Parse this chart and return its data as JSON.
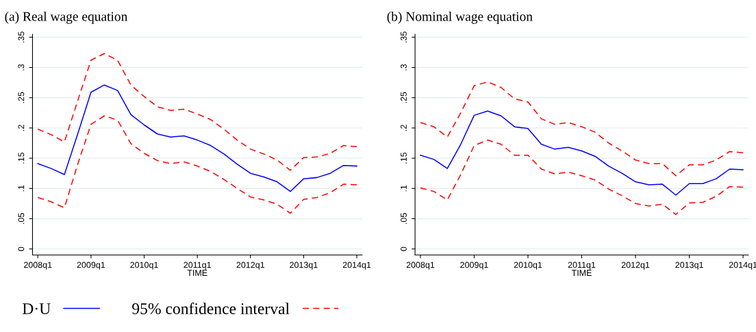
{
  "chart_data": [
    {
      "type": "line",
      "title": "(a) Real wage equation",
      "xlabel": "TIME",
      "legend": "bottom",
      "grid": "y",
      "categories": [
        "2008q1",
        null,
        null,
        null,
        "2009q1",
        null,
        null,
        null,
        "2010q1",
        null,
        null,
        null,
        "2011q1",
        null,
        null,
        null,
        "2012q1",
        null,
        null,
        null,
        "2013q1",
        null,
        null,
        null,
        "2014q1"
      ],
      "ylim": [
        -0.01,
        0.355
      ],
      "yticks": [
        {
          "value": 0,
          "label": "0"
        },
        {
          "value": 0.05,
          "label": ".05"
        },
        {
          "value": 0.1,
          "label": ".1"
        },
        {
          "value": 0.15,
          "label": ".15"
        },
        {
          "value": 0.2,
          "label": ".2"
        },
        {
          "value": 0.25,
          "label": ".25"
        },
        {
          "value": 0.3,
          "label": ".3"
        },
        {
          "value": 0.35,
          "label": ".35"
        }
      ],
      "series": [
        {
          "name": "D·U",
          "color": "#0000ff",
          "line_style": "solid",
          "values": [
            0.141,
            0.133,
            0.123,
            0.19,
            0.259,
            0.271,
            0.262,
            0.222,
            0.205,
            0.19,
            0.185,
            0.187,
            0.18,
            0.171,
            0.157,
            0.14,
            0.125,
            0.119,
            0.111,
            0.095,
            0.116,
            0.118,
            0.125,
            0.138,
            0.137
          ]
        },
        {
          "name": "95% confidence interval",
          "color": "#ff0000",
          "line_style": "dashed",
          "values": [
            0.198,
            0.189,
            0.177,
            0.245,
            0.312,
            0.323,
            0.312,
            0.271,
            0.252,
            0.235,
            0.229,
            0.231,
            0.223,
            0.214,
            0.198,
            0.18,
            0.165,
            0.157,
            0.147,
            0.13,
            0.151,
            0.152,
            0.158,
            0.171,
            0.169
          ]
        },
        {
          "color": "#ff0000",
          "line_style": "dashed",
          "values": [
            0.085,
            0.078,
            0.068,
            0.14,
            0.206,
            0.22,
            0.213,
            0.174,
            0.158,
            0.146,
            0.141,
            0.144,
            0.137,
            0.128,
            0.115,
            0.1,
            0.086,
            0.081,
            0.074,
            0.059,
            0.082,
            0.085,
            0.093,
            0.107,
            0.106
          ]
        }
      ]
    },
    {
      "type": "line",
      "title": "(b) Nominal wage equation",
      "xlabel": "TIME",
      "grid": "y",
      "categories": [
        "2008q1",
        null,
        null,
        null,
        "2009q1",
        null,
        null,
        null,
        "2010q1",
        null,
        null,
        null,
        "2011q1",
        null,
        null,
        null,
        "2012q1",
        null,
        null,
        null,
        "2013q1",
        null,
        null,
        null,
        "2014q1"
      ],
      "ylim": [
        -0.01,
        0.355
      ],
      "yticks": [
        {
          "value": 0,
          "label": "0"
        },
        {
          "value": 0.05,
          "label": ".05"
        },
        {
          "value": 0.1,
          "label": ".1"
        },
        {
          "value": 0.15,
          "label": ".15"
        },
        {
          "value": 0.2,
          "label": ".2"
        },
        {
          "value": 0.25,
          "label": ".25"
        },
        {
          "value": 0.3,
          "label": ".3"
        },
        {
          "value": 0.35,
          "label": ".35"
        }
      ],
      "series": [
        {
          "color": "#0000ff",
          "line_style": "solid",
          "values": [
            0.155,
            0.148,
            0.133,
            0.173,
            0.221,
            0.228,
            0.22,
            0.202,
            0.199,
            0.173,
            0.165,
            0.168,
            0.162,
            0.153,
            0.137,
            0.125,
            0.111,
            0.106,
            0.107,
            0.089,
            0.108,
            0.108,
            0.116,
            0.132,
            0.131
          ]
        },
        {
          "color": "#ff0000",
          "line_style": "dashed",
          "values": [
            0.209,
            0.202,
            0.185,
            0.225,
            0.27,
            0.276,
            0.267,
            0.248,
            0.243,
            0.215,
            0.206,
            0.209,
            0.202,
            0.193,
            0.175,
            0.162,
            0.147,
            0.141,
            0.141,
            0.121,
            0.139,
            0.139,
            0.147,
            0.161,
            0.159
          ]
        },
        {
          "color": "#ff0000",
          "line_style": "dashed",
          "values": [
            0.101,
            0.095,
            0.081,
            0.123,
            0.171,
            0.18,
            0.173,
            0.155,
            0.155,
            0.132,
            0.124,
            0.127,
            0.121,
            0.114,
            0.099,
            0.088,
            0.075,
            0.071,
            0.074,
            0.057,
            0.076,
            0.077,
            0.087,
            0.103,
            0.102
          ]
        }
      ]
    }
  ]
}
